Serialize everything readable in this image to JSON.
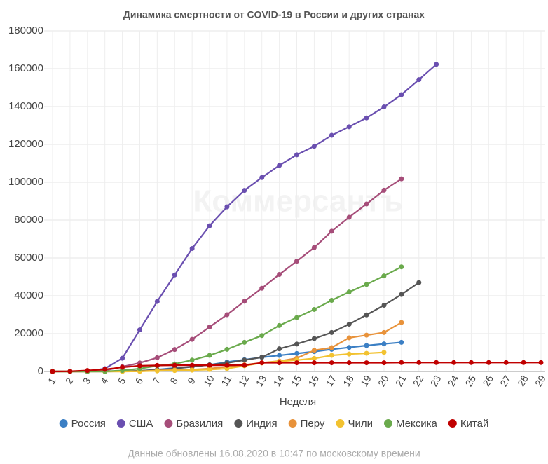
{
  "chart_data": {
    "type": "line",
    "title": "Динамика смертности от COVID-19 в России и других странах",
    "xlabel": "Неделя",
    "watermark": "Коммерсантъ",
    "note": "Данные обновлены 16.08.2020 в 10:47 по московскому времени",
    "categories": [
      "1",
      "2",
      "3",
      "4",
      "5",
      "6",
      "7",
      "8",
      "9",
      "10",
      "11",
      "12",
      "13",
      "14",
      "15",
      "16",
      "17",
      "18",
      "19",
      "20",
      "21",
      "22",
      "23",
      "24",
      "25",
      "26",
      "27",
      "28",
      "29"
    ],
    "ylim": [
      0,
      180000
    ],
    "yticks": [
      0,
      20000,
      40000,
      60000,
      80000,
      100000,
      120000,
      140000,
      160000,
      180000
    ],
    "grid": true,
    "legend": "bottom",
    "series": [
      {
        "name": "Россия",
        "color": "#3b7fc4",
        "values": [
          0,
          0,
          0,
          0,
          100,
          300,
          1000,
          1800,
          2500,
          3500,
          5000,
          6200,
          7500,
          8500,
          9500,
          10500,
          11700,
          12700,
          13700,
          14600,
          15400,
          null,
          null,
          null,
          null,
          null,
          null,
          null,
          null
        ]
      },
      {
        "name": "США",
        "color": "#6a4fb0",
        "values": [
          0,
          0,
          200,
          1500,
          7000,
          22000,
          37000,
          51000,
          65000,
          77000,
          87000,
          95700,
          102500,
          108900,
          114500,
          119000,
          124800,
          129300,
          134000,
          139800,
          146300,
          154200,
          162300,
          null,
          null,
          null,
          null,
          null,
          null
        ]
      },
      {
        "name": "Бразилия",
        "color": "#a64d79",
        "values": [
          0,
          0,
          0,
          500,
          2500,
          4500,
          7300,
          11600,
          17000,
          23500,
          30000,
          37100,
          44000,
          51300,
          58300,
          65500,
          74100,
          81500,
          88500,
          95800,
          101800,
          null,
          null,
          null,
          null,
          null,
          null,
          null,
          null
        ]
      },
      {
        "name": "Индия",
        "color": "#555555",
        "values": [
          0,
          0,
          0,
          0,
          100,
          400,
          800,
          1500,
          2500,
          3500,
          4500,
          6000,
          7500,
          12000,
          14500,
          17400,
          20600,
          25000,
          29900,
          35000,
          40700,
          47000,
          null,
          null,
          null,
          null,
          null,
          null,
          null
        ]
      },
      {
        "name": "Перу",
        "color": "#e8923a",
        "values": [
          0,
          0,
          0,
          0,
          0,
          100,
          500,
          800,
          1000,
          1500,
          2500,
          3500,
          4600,
          5500,
          7000,
          11200,
          12600,
          17800,
          19200,
          20600,
          25900,
          null,
          null,
          null,
          null,
          null,
          null,
          null,
          null
        ]
      },
      {
        "name": "Чили",
        "color": "#f2c230",
        "values": [
          0,
          0,
          0,
          0,
          0,
          100,
          300,
          500,
          700,
          1000,
          1500,
          3000,
          4500,
          5300,
          6000,
          6900,
          8500,
          9200,
          9600,
          10100,
          null,
          null,
          null,
          null,
          null,
          null,
          null,
          null,
          null
        ]
      },
      {
        "name": "Мексика",
        "color": "#6aaa4c",
        "values": [
          0,
          0,
          0,
          50,
          500,
          1500,
          3000,
          4000,
          6000,
          8500,
          11700,
          15400,
          19000,
          24300,
          28500,
          32800,
          37600,
          42000,
          46000,
          50500,
          55300,
          null,
          null,
          null,
          null,
          null,
          null,
          null,
          null
        ]
      },
      {
        "name": "Китай",
        "color": "#c00000",
        "values": [
          0,
          100,
          500,
          1100,
          2200,
          3000,
          3200,
          3300,
          3300,
          3300,
          3300,
          3300,
          4600,
          4600,
          4600,
          4600,
          4600,
          4600,
          4600,
          4600,
          4700,
          4700,
          4700,
          4700,
          4700,
          4700,
          4700,
          4700,
          4700
        ]
      }
    ]
  }
}
